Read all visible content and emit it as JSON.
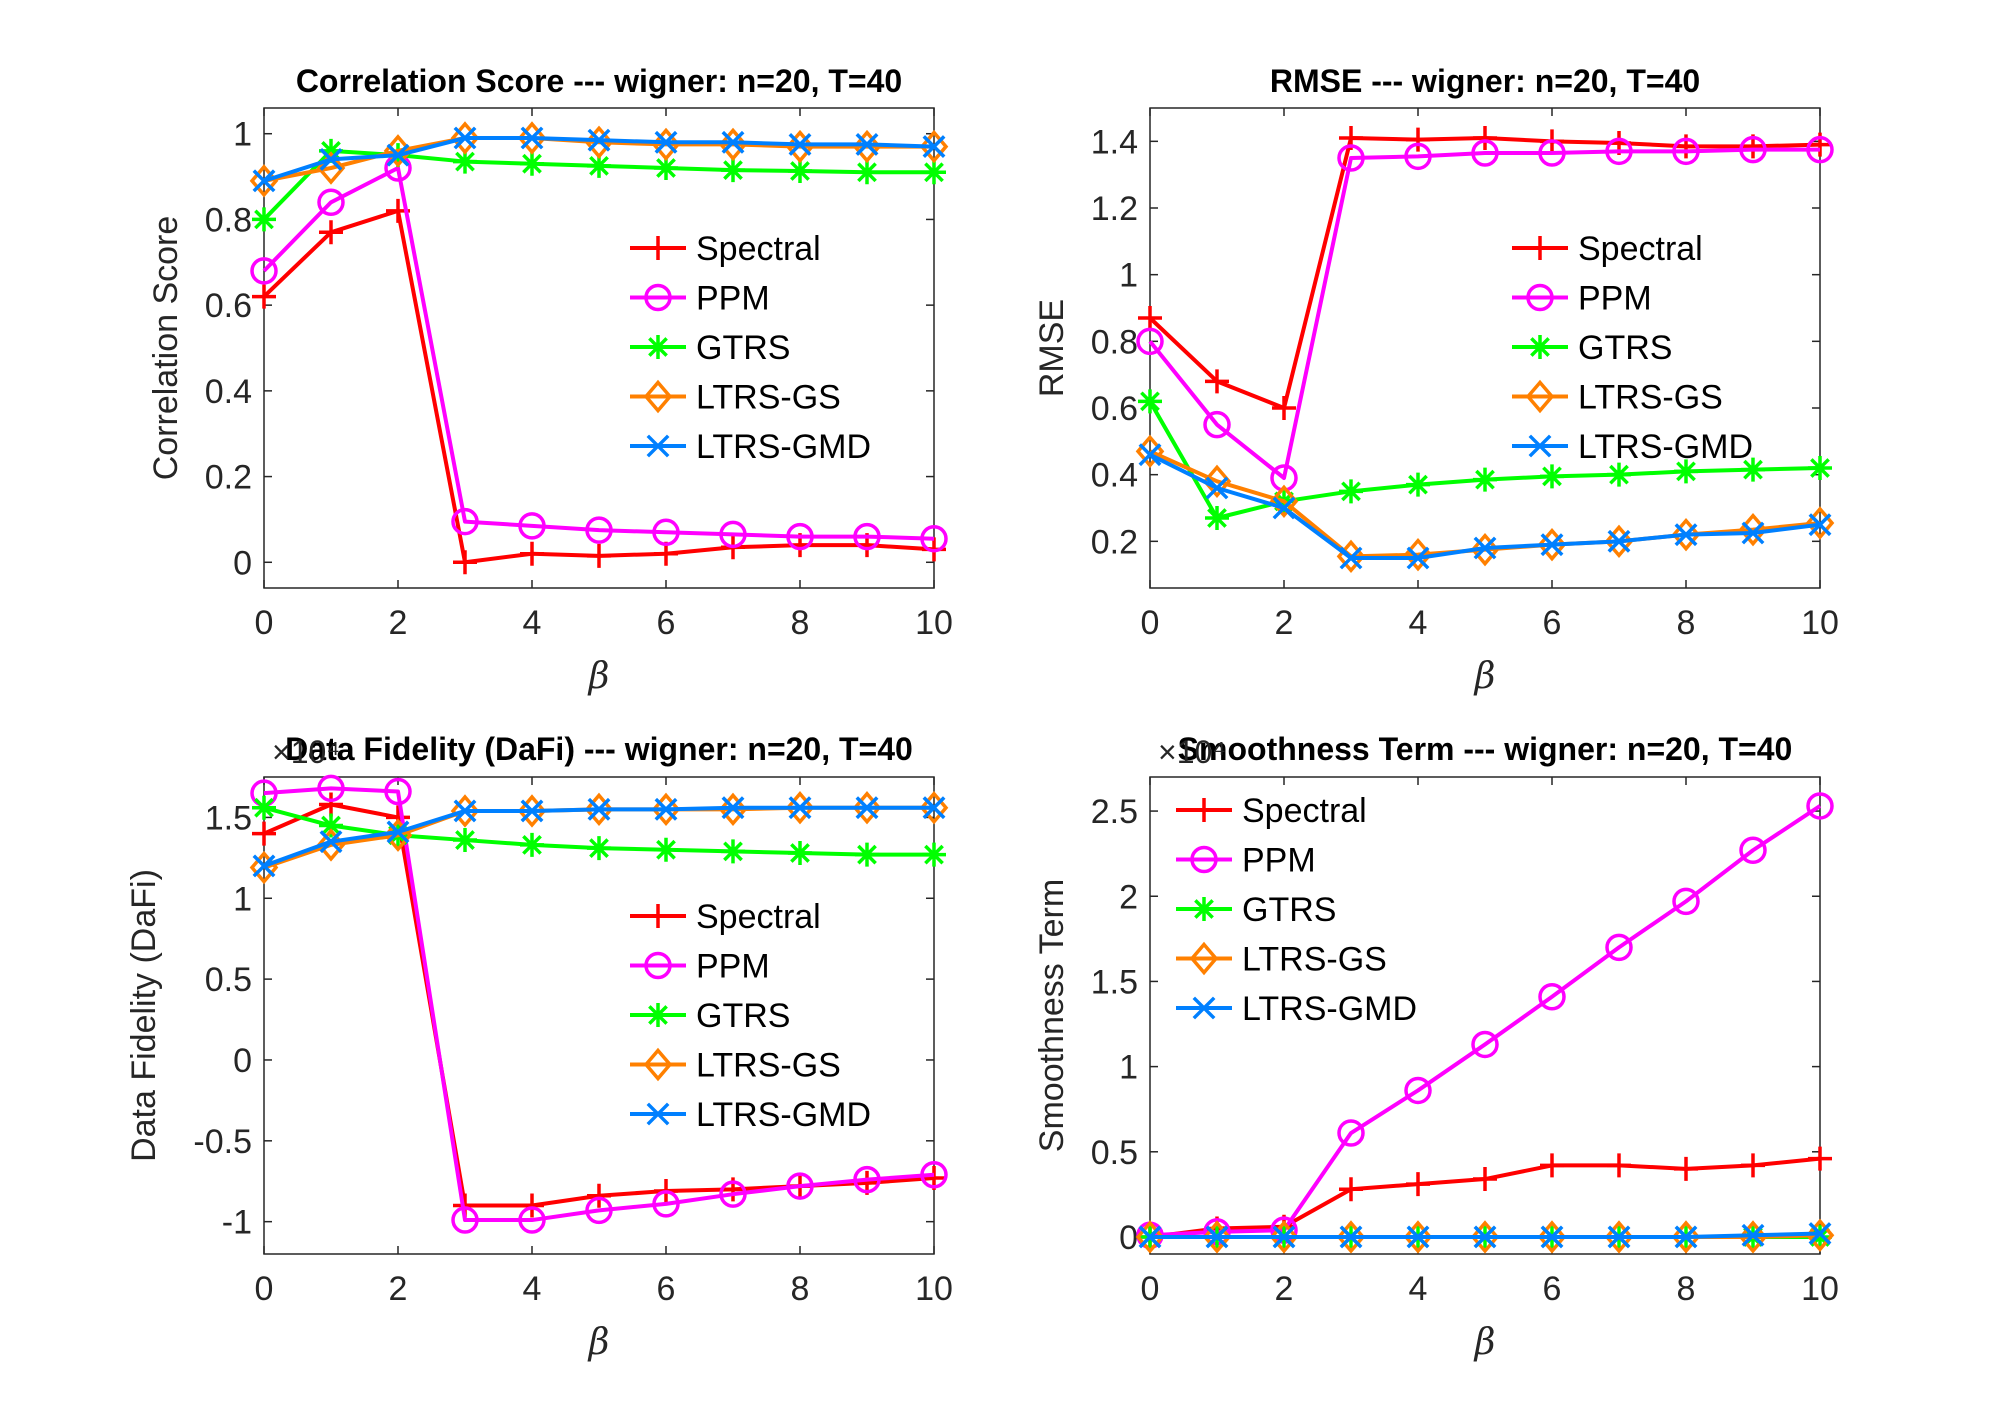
{
  "colors": {
    "Spectral": "#ff0000",
    "PPM": "#ff00ff",
    "GTRS": "#00ff00",
    "LTRS-GS": "#ff8000",
    "LTRS-GMD": "#0080ff"
  },
  "markers": {
    "Spectral": "plus",
    "PPM": "circle",
    "GTRS": "asterisk",
    "LTRS-GS": "diamond",
    "LTRS-GMD": "cross"
  },
  "chart_data": [
    {
      "type": "line",
      "title": "Correlation Score --- wigner: n=20, T=40",
      "xlabel": "β",
      "ylabel": "Correlation Score",
      "exponent_label": "",
      "xlim": [
        0,
        10
      ],
      "ylim": [
        -0.06,
        1.06
      ],
      "xticks": [
        0,
        2,
        4,
        6,
        8,
        10
      ],
      "yticks": [
        0,
        0.2,
        0.4,
        0.6,
        0.8,
        1
      ],
      "ytick_labels": [
        "0",
        "0.2",
        "0.4",
        "0.6",
        "0.8",
        "1"
      ],
      "legend_position": "center-right",
      "x": [
        0,
        1,
        2,
        3,
        4,
        5,
        6,
        7,
        8,
        9,
        10
      ],
      "series": [
        {
          "name": "Spectral",
          "values": [
            0.62,
            0.77,
            0.82,
            0.0,
            0.02,
            0.015,
            0.02,
            0.035,
            0.04,
            0.04,
            0.03
          ]
        },
        {
          "name": "PPM",
          "values": [
            0.68,
            0.84,
            0.92,
            0.095,
            0.085,
            0.075,
            0.07,
            0.065,
            0.06,
            0.06,
            0.055
          ]
        },
        {
          "name": "GTRS",
          "values": [
            0.8,
            0.96,
            0.95,
            0.935,
            0.93,
            0.925,
            0.92,
            0.915,
            0.913,
            0.91,
            0.91
          ]
        },
        {
          "name": "LTRS-GS",
          "values": [
            0.89,
            0.92,
            0.96,
            0.99,
            0.99,
            0.98,
            0.975,
            0.975,
            0.97,
            0.97,
            0.97
          ]
        },
        {
          "name": "LTRS-GMD",
          "values": [
            0.89,
            0.94,
            0.95,
            0.99,
            0.99,
            0.985,
            0.98,
            0.98,
            0.975,
            0.975,
            0.97
          ]
        }
      ]
    },
    {
      "type": "line",
      "title": "RMSE --- wigner: n=20, T=40",
      "xlabel": "β",
      "ylabel": "RMSE",
      "exponent_label": "",
      "xlim": [
        0,
        10
      ],
      "ylim": [
        0.06,
        1.5
      ],
      "xticks": [
        0,
        2,
        4,
        6,
        8,
        10
      ],
      "yticks": [
        0.2,
        0.4,
        0.6,
        0.8,
        1,
        1.2,
        1.4
      ],
      "ytick_labels": [
        "0.2",
        "0.4",
        "0.6",
        "0.8",
        "1",
        "1.2",
        "1.4"
      ],
      "legend_position": "center-right",
      "x": [
        0,
        1,
        2,
        3,
        4,
        5,
        6,
        7,
        8,
        9,
        10
      ],
      "series": [
        {
          "name": "Spectral",
          "values": [
            0.87,
            0.68,
            0.6,
            1.41,
            1.405,
            1.41,
            1.4,
            1.395,
            1.385,
            1.385,
            1.39
          ]
        },
        {
          "name": "PPM",
          "values": [
            0.8,
            0.55,
            0.39,
            1.35,
            1.355,
            1.365,
            1.365,
            1.37,
            1.37,
            1.375,
            1.375
          ]
        },
        {
          "name": "GTRS",
          "values": [
            0.62,
            0.27,
            0.32,
            0.35,
            0.37,
            0.385,
            0.395,
            0.4,
            0.41,
            0.415,
            0.42
          ]
        },
        {
          "name": "LTRS-GS",
          "values": [
            0.47,
            0.38,
            0.32,
            0.155,
            0.16,
            0.175,
            0.19,
            0.2,
            0.22,
            0.235,
            0.255
          ]
        },
        {
          "name": "LTRS-GMD",
          "values": [
            0.46,
            0.36,
            0.3,
            0.15,
            0.15,
            0.18,
            0.19,
            0.2,
            0.22,
            0.225,
            0.25
          ]
        }
      ]
    },
    {
      "type": "line",
      "title": "Data Fidelity (DaFi) --- wigner: n=20, T=40",
      "xlabel": "β",
      "ylabel": "Data Fidelity (DaFi)",
      "exponent_label": "×10⁴",
      "xlim": [
        0,
        10
      ],
      "ylim": [
        -1.2,
        1.75
      ],
      "xticks": [
        0,
        2,
        4,
        6,
        8,
        10
      ],
      "yticks": [
        -1,
        -0.5,
        0,
        0.5,
        1,
        1.5
      ],
      "ytick_labels": [
        "-1",
        "-0.5",
        "0",
        "0.5",
        "1",
        "1.5"
      ],
      "legend_position": "center-right",
      "x": [
        0,
        1,
        2,
        3,
        4,
        5,
        6,
        7,
        8,
        9,
        10
      ],
      "series": [
        {
          "name": "Spectral",
          "values": [
            1.4,
            1.58,
            1.5,
            -0.9,
            -0.9,
            -0.84,
            -0.81,
            -0.8,
            -0.78,
            -0.76,
            -0.73
          ]
        },
        {
          "name": "PPM",
          "values": [
            1.65,
            1.68,
            1.66,
            -0.99,
            -0.99,
            -0.93,
            -0.89,
            -0.83,
            -0.78,
            -0.74,
            -0.71
          ]
        },
        {
          "name": "GTRS",
          "values": [
            1.56,
            1.45,
            1.39,
            1.36,
            1.33,
            1.31,
            1.3,
            1.29,
            1.28,
            1.27,
            1.27
          ]
        },
        {
          "name": "LTRS-GS",
          "values": [
            1.19,
            1.33,
            1.39,
            1.54,
            1.54,
            1.55,
            1.55,
            1.55,
            1.56,
            1.56,
            1.56
          ]
        },
        {
          "name": "LTRS-GMD",
          "values": [
            1.2,
            1.35,
            1.41,
            1.54,
            1.54,
            1.55,
            1.55,
            1.56,
            1.56,
            1.56,
            1.56
          ]
        }
      ]
    },
    {
      "type": "line",
      "title": "Smoothness Term  --- wigner: n=20, T=40",
      "xlabel": "β",
      "ylabel": "Smoothness Term",
      "exponent_label": "×10⁴",
      "xlim": [
        0,
        10
      ],
      "ylim": [
        -0.1,
        2.7
      ],
      "xticks": [
        0,
        2,
        4,
        6,
        8,
        10
      ],
      "yticks": [
        0,
        0.5,
        1,
        1.5,
        2,
        2.5
      ],
      "ytick_labels": [
        "0",
        "0.5",
        "1",
        "1.5",
        "2",
        "2.5"
      ],
      "legend_position": "top-left",
      "x": [
        0,
        1,
        2,
        3,
        4,
        5,
        6,
        7,
        8,
        9,
        10
      ],
      "series": [
        {
          "name": "Spectral",
          "values": [
            0.0,
            0.05,
            0.06,
            0.28,
            0.31,
            0.34,
            0.42,
            0.42,
            0.4,
            0.42,
            0.46
          ]
        },
        {
          "name": "PPM",
          "values": [
            0.01,
            0.03,
            0.04,
            0.61,
            0.86,
            1.13,
            1.41,
            1.7,
            1.97,
            2.27,
            2.53
          ]
        },
        {
          "name": "GTRS",
          "values": [
            0.0,
            0.0,
            0.0,
            0.0,
            0.0,
            0.0,
            0.0,
            0.0,
            0.0,
            0.0,
            0.0
          ]
        },
        {
          "name": "LTRS-GS",
          "values": [
            0.0,
            0.0,
            0.0,
            0.0,
            0.0,
            0.0,
            0.0,
            0.0,
            0.0,
            0.0,
            0.01
          ]
        },
        {
          "name": "LTRS-GMD",
          "values": [
            0.0,
            0.0,
            0.0,
            0.0,
            0.0,
            0.0,
            0.0,
            0.0,
            0.0,
            0.01,
            0.02
          ]
        }
      ]
    }
  ]
}
